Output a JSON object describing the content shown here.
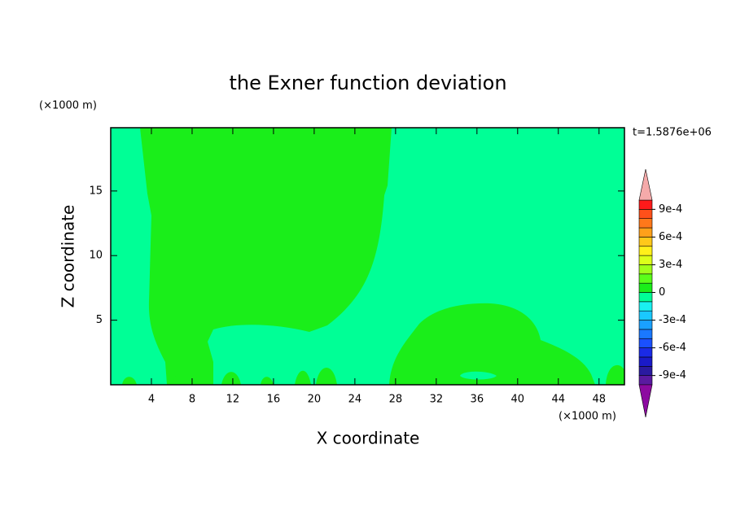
{
  "chart_data": {
    "type": "contour",
    "title": "the Exner function deviation",
    "xlabel": "X coordinate",
    "ylabel": "Z coordinate",
    "xunit": "(×1000 m)",
    "yunit": "(×1000 m)",
    "time_label": "t=1.5876e+06",
    "xlim": [
      0,
      50.5
    ],
    "ylim": [
      0,
      19.9
    ],
    "xticks": [
      4,
      8,
      12,
      16,
      20,
      24,
      28,
      32,
      36,
      40,
      44,
      48
    ],
    "yticks": [
      5,
      10,
      15
    ],
    "levels": [
      -0.001,
      -0.0009,
      -0.0008,
      -0.0007,
      -0.0006,
      -0.0005,
      -0.0004,
      -0.0003,
      -0.0002,
      -0.0001,
      0,
      0.0001,
      0.0002,
      0.0003,
      0.0004,
      0.0005,
      0.0006,
      0.0007,
      0.0008,
      0.0009,
      0.001
    ],
    "colors": [
      "#5a1aa0",
      "#2a1aa0",
      "#1a1ac8",
      "#1a2ae6",
      "#1a50ff",
      "#1a78ff",
      "#1aa0ff",
      "#1ac8ff",
      "#1af0f0",
      "#00ff96",
      "#1aee1a",
      "#5aff1a",
      "#a0ff1a",
      "#dcff1a",
      "#fff01a",
      "#ffc81a",
      "#ffa01a",
      "#ff781a",
      "#ff501a",
      "#ff1a1a"
    ],
    "under_color": "#8c0aa0",
    "over_color": "#f5aaaa",
    "cbar_ticks": [
      {
        "value": -0.0009,
        "label": "-9e-4"
      },
      {
        "value": -0.0006,
        "label": "-6e-4"
      },
      {
        "value": -0.0003,
        "label": "-3e-4"
      },
      0,
      {
        "value": 0.0003,
        "label": "3e-4"
      },
      {
        "value": 0.0006,
        "label": "6e-4"
      },
      {
        "value": 0.0009,
        "label": "9e-4"
      }
    ]
  }
}
